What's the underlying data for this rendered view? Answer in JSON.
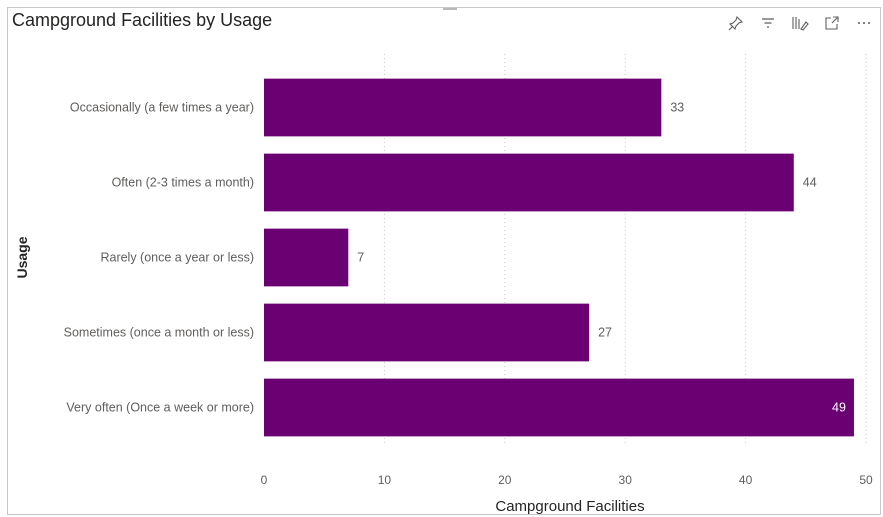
{
  "visual": {
    "title": "Campground Facilities by Usage",
    "header_icons": [
      "pin-icon",
      "filter-icon",
      "focus-mode-icon",
      "expand-icon",
      "more-options-icon"
    ]
  },
  "colors": {
    "bar": "#6b0072",
    "grid": "#c8c6c4",
    "label_outside": "#605e5c",
    "label_inside": "#ffffff"
  },
  "chart_data": {
    "type": "bar",
    "orientation": "horizontal",
    "title": "Campground Facilities by Usage",
    "xlabel": "Campground Facilities",
    "ylabel": "Usage",
    "categories": [
      "Occasionally (a few times a year)",
      "Often (2-3 times a month)",
      "Rarely (once a year or less)",
      "Sometimes (once a month or less)",
      "Very often (Once a week or more)"
    ],
    "values": [
      33,
      44,
      7,
      27,
      49
    ],
    "xlim": [
      0,
      50
    ],
    "xticks": [
      0,
      10,
      20,
      30,
      40,
      50
    ],
    "grid": true,
    "data_labels": true
  }
}
